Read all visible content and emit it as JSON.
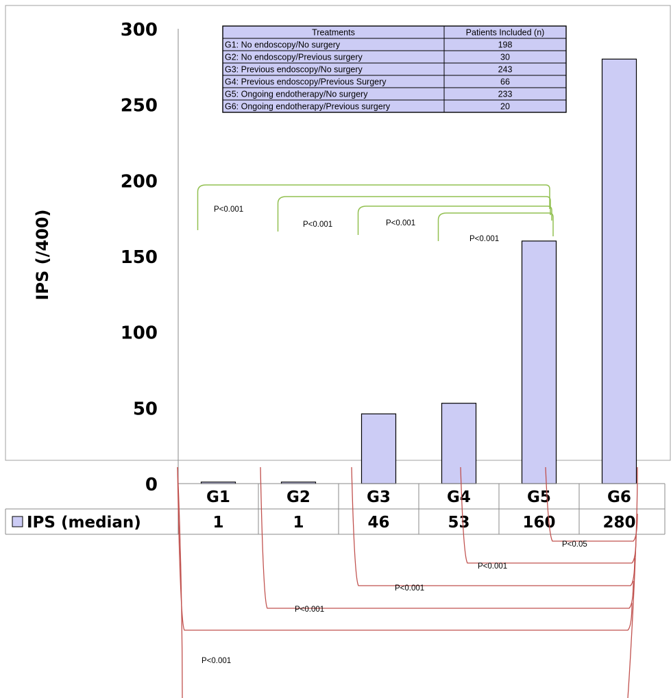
{
  "chart_data": {
    "type": "bar",
    "ylabel": "IPS (/400)",
    "ylim": [
      0,
      300
    ],
    "yticks": [
      "0",
      "50",
      "100",
      "150",
      "200",
      "250",
      "300"
    ],
    "categories": [
      "G1",
      "G2",
      "G3",
      "G4",
      "G5",
      "G6"
    ],
    "series": [
      {
        "name": "IPS (median)",
        "values": [
          1,
          1,
          46,
          53,
          160,
          280
        ],
        "value_labels": [
          "1",
          "1",
          "46",
          "53",
          "160",
          "280"
        ]
      }
    ],
    "legend": "bottom-left, in data table",
    "grid": false,
    "colors": {
      "bar_fill": "#ccccf5",
      "green_brackets": "#92c050",
      "red_brackets": "#c0504d"
    },
    "treatments_table": {
      "headers": [
        "Treatments",
        "Patients Included (n)"
      ],
      "rows": [
        [
          "G1: No endoscopy/No surgery",
          "198"
        ],
        [
          "G2: No endoscopy/Previous surgery",
          "30"
        ],
        [
          "G3: Previous endoscopy/No surgery",
          "243"
        ],
        [
          "G4: Previous endoscopy/Previous Surgery",
          "66"
        ],
        [
          "G5: Ongoing endotherapy/No surgery",
          "233"
        ],
        [
          "G6: Ongoing endotherapy/Previous surgery",
          "20"
        ]
      ]
    },
    "comparisons_green": [
      {
        "from": "G1",
        "to": "G5",
        "label": "P<0.001"
      },
      {
        "from": "G2",
        "to": "G5",
        "label": "P<0.001"
      },
      {
        "from": "G3",
        "to": "G5",
        "label": "P<0.001"
      },
      {
        "from": "G4",
        "to": "G5",
        "label": "P<0.001"
      }
    ],
    "comparisons_red": [
      {
        "from": "G5",
        "to": "G6",
        "label": "P<0.05"
      },
      {
        "from": "G4",
        "to": "G6",
        "label": "P<0.001"
      },
      {
        "from": "G3",
        "to": "G6",
        "label": "P<0.001"
      },
      {
        "from": "G2",
        "to": "G6",
        "label": "P<0.001"
      },
      {
        "from": "G1",
        "to": "G6",
        "label": "P<0.001"
      }
    ]
  }
}
